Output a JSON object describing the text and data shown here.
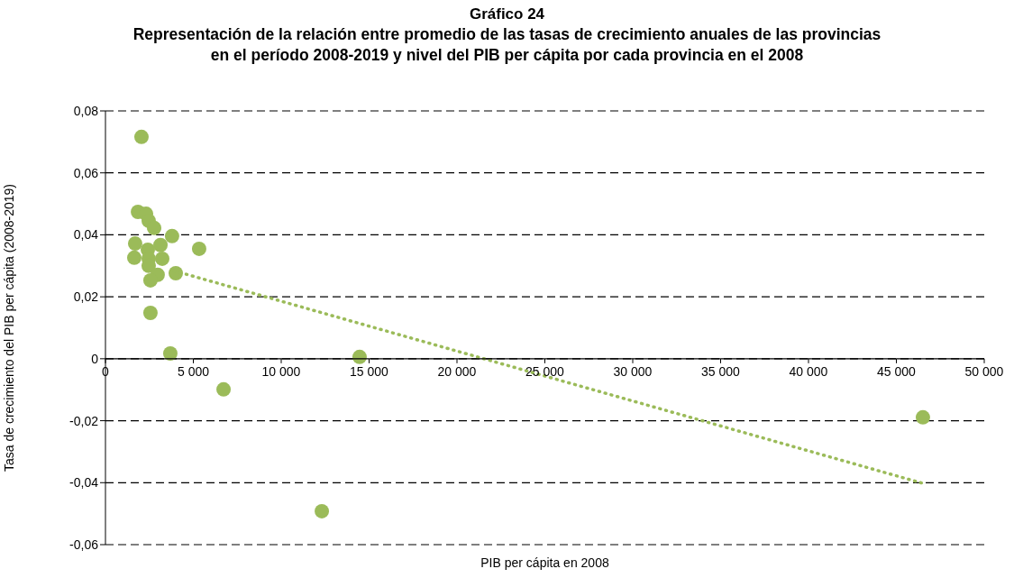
{
  "chart_data": {
    "type": "scatter",
    "title": "Gráfico 24",
    "subtitle": "Representación de la relación entre promedio de las tasas de crecimiento anuales de las provincias\nen el período 2008-2019 y nivel del PIB per cápita por cada provincia en el 2008",
    "xlabel": "PIB per cápita en 2008",
    "ylabel": "Tasa de crecimiento del PIB per cápita (2008-2019)",
    "series": [
      {
        "type": "scatter",
        "color": "#9bbb59",
        "marker": "circle",
        "x": [
          2050,
          1850,
          2310,
          2460,
          2770,
          3790,
          1690,
          2410,
          3130,
          5330,
          1640,
          2210,
          2460,
          3230,
          2460,
          2970,
          4000,
          2560,
          2560,
          3690,
          6720,
          12310,
          14460,
          46510
        ],
        "values": [
          0.0716,
          0.0474,
          0.0468,
          0.0445,
          0.0422,
          0.0396,
          0.0372,
          0.0352,
          0.0367,
          0.0355,
          0.0326,
          null,
          0.0323,
          0.0323,
          0.03,
          0.0271,
          0.0276,
          0.0253,
          0.0148,
          0.0017,
          -0.0099,
          -0.0492,
          0.0006,
          -0.0189
        ]
      },
      {
        "type": "line",
        "color": "#9bbb59",
        "marker": "none",
        "line_style": "dotted",
        "x": [
          3900,
          46500
        ],
        "values": [
          0.0284,
          -0.0402
        ]
      }
    ],
    "xlim": [
      0,
      50000
    ],
    "xticks": [
      {
        "value": 0,
        "label": "0"
      },
      {
        "value": 5000,
        "label": "5 000"
      },
      {
        "value": 10000,
        "label": "10 000"
      },
      {
        "value": 15000,
        "label": "15 000"
      },
      {
        "value": 20000,
        "label": "20 000"
      },
      {
        "value": 25000,
        "label": "25 000"
      },
      {
        "value": 30000,
        "label": "30 000"
      },
      {
        "value": 35000,
        "label": "35 000"
      },
      {
        "value": 40000,
        "label": "40 000"
      },
      {
        "value": 45000,
        "label": "45 000"
      },
      {
        "value": 50000,
        "label": "50 000"
      }
    ],
    "ylim": [
      -0.06,
      0.08
    ],
    "yticks": [
      {
        "value": -0.06,
        "label": "-0,06"
      },
      {
        "value": -0.04,
        "label": "-0,04"
      },
      {
        "value": -0.02,
        "label": "-0,02"
      },
      {
        "value": 0,
        "label": "0"
      },
      {
        "value": 0.02,
        "label": "0,02"
      },
      {
        "value": 0.04,
        "label": "0,04"
      },
      {
        "value": 0.06,
        "label": "0,06"
      },
      {
        "value": 0.08,
        "label": "0,08"
      }
    ],
    "grid": "y"
  }
}
